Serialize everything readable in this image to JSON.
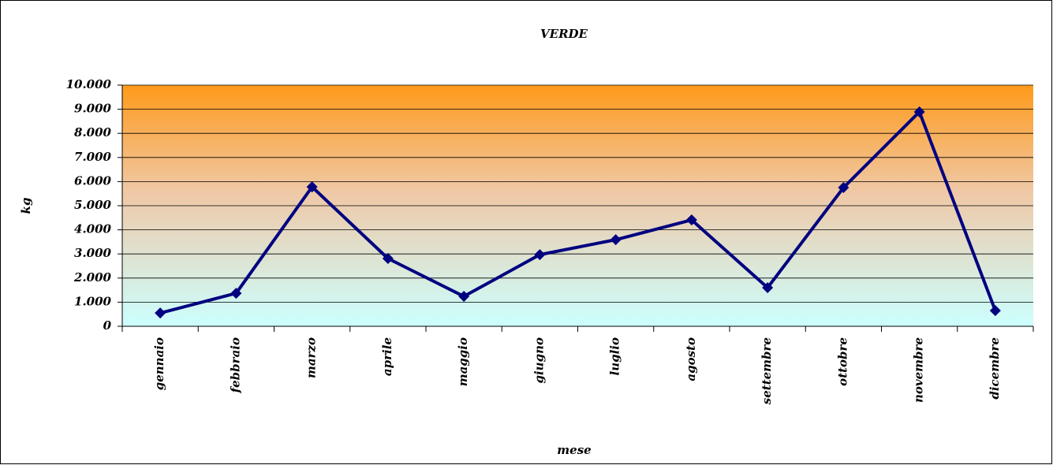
{
  "chart_data": {
    "type": "line",
    "title": "VERDE",
    "x_label": "mese",
    "y_label": "kg",
    "categories": [
      "gennaio",
      "febbraio",
      "marzo",
      "aprile",
      "maggio",
      "giugno",
      "luglio",
      "agosto",
      "settembre",
      "ottobre",
      "novembre",
      "dicembre"
    ],
    "series": [
      {
        "name": "VERDE",
        "color": "#000080",
        "values": [
          550,
          1370,
          5780,
          2810,
          1240,
          2970,
          3590,
          4410,
          1600,
          5750,
          8890,
          650
        ]
      }
    ],
    "ylim": [
      0,
      10000
    ],
    "yticks": [
      0,
      {
        "value": 1000,
        "label": "1.000"
      },
      {
        "value": 2000,
        "label": "2.000"
      },
      {
        "value": 3000,
        "label": "3.000"
      },
      {
        "value": 4000,
        "label": "4.000"
      },
      {
        "value": 5000,
        "label": "5.000"
      },
      {
        "value": 6000,
        "label": "6.000"
      },
      {
        "value": 7000,
        "label": "7.000"
      },
      {
        "value": 8000,
        "label": "8.000"
      },
      {
        "value": 9000,
        "label": "9.000"
      },
      {
        "value": 10000,
        "label": "10.000"
      }
    ],
    "grid": true,
    "legend": false
  }
}
